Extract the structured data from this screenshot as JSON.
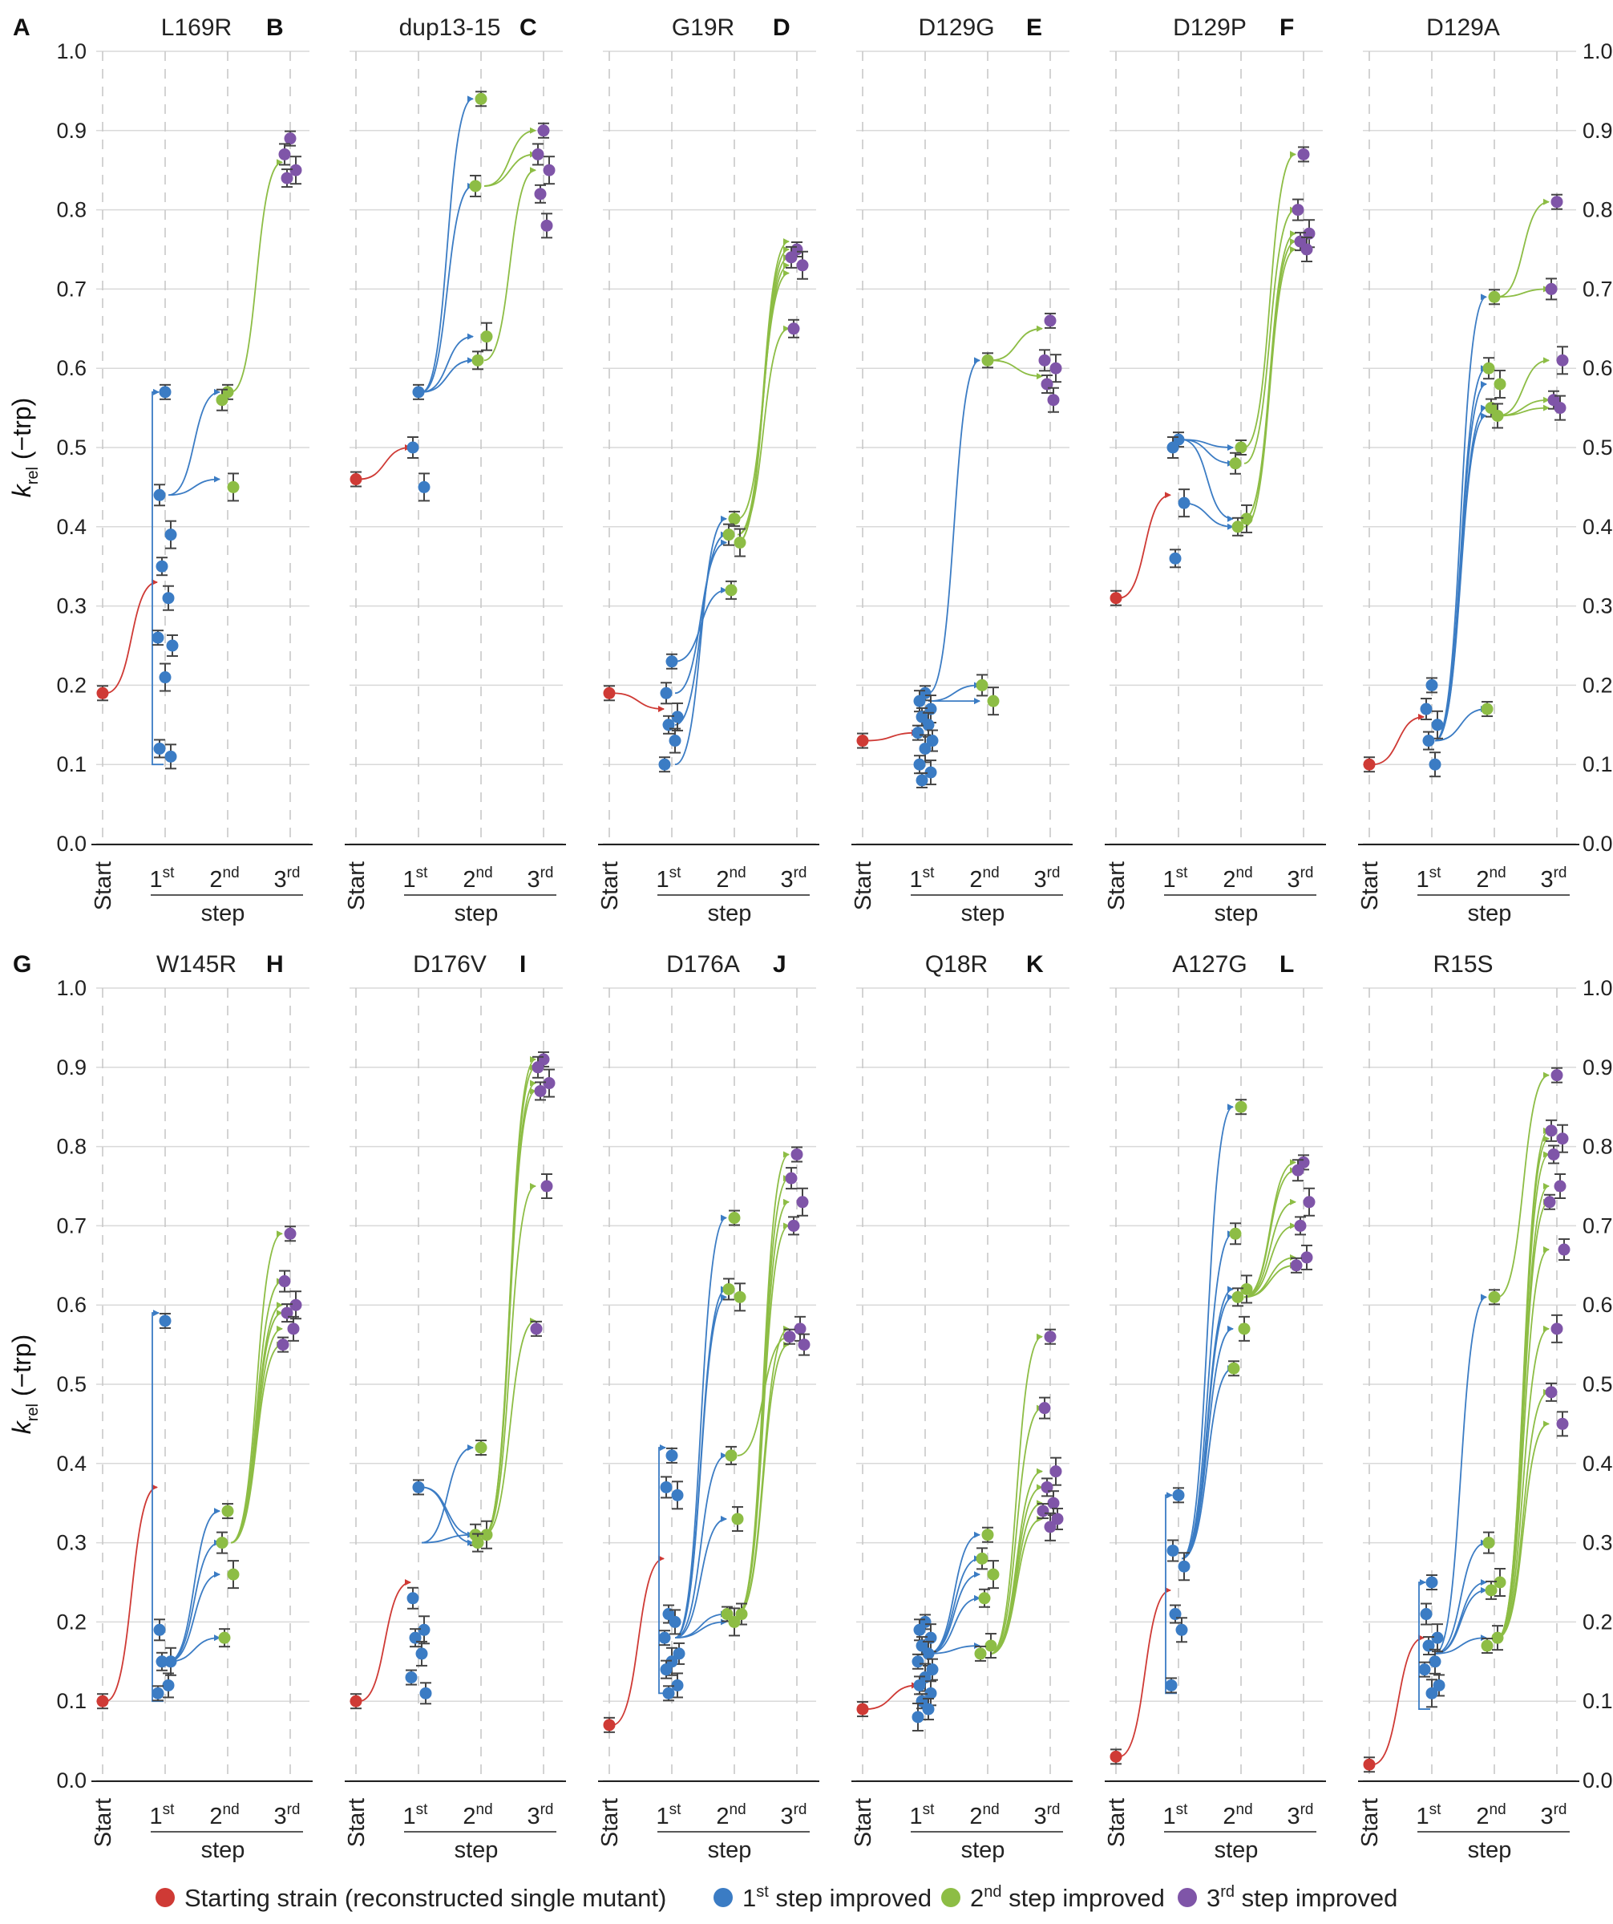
{
  "ylabel": "k",
  "ylabel_sub": "rel",
  "ylabel_suffix": " (−trp)",
  "x_categories": [
    "Start",
    "1st",
    "2nd",
    "3rd"
  ],
  "x_group_label": "step",
  "colors": {
    "start": "#cf3a35",
    "step1": "#3b7cc4",
    "step2": "#8dbd45",
    "step3": "#7f55a8",
    "grid": "#d9d9d9",
    "axis": "#222222"
  },
  "legend": [
    {
      "key": "start",
      "text": "Starting strain (reconstructed single mutant)",
      "parts": [
        [
          "Starting strain (reconstructed single mutant)",
          ""
        ]
      ]
    },
    {
      "key": "step1",
      "text": "1st step improved",
      "parts": [
        [
          "1",
          ""
        ],
        [
          "st",
          "sup"
        ],
        [
          " step improved",
          ""
        ]
      ]
    },
    {
      "key": "step2",
      "text": "2nd step improved",
      "parts": [
        [
          "2",
          ""
        ],
        [
          "nd",
          "sup"
        ],
        [
          " step improved",
          ""
        ]
      ]
    },
    {
      "key": "step3",
      "text": "3rd step improved",
      "parts": [
        [
          "3",
          ""
        ],
        [
          "rd",
          "sup"
        ],
        [
          " step improved",
          ""
        ]
      ]
    }
  ],
  "chart_data": [
    {
      "type": "scatter",
      "letter": "A",
      "title": "L169R",
      "ylim": [
        0,
        1
      ],
      "start": 0.19,
      "step1": [
        0.57,
        0.44,
        0.39,
        0.35,
        0.31,
        0.26,
        0.25,
        0.21,
        0.12,
        0.11
      ],
      "step2": [
        0.57,
        0.56,
        0.45
      ],
      "step3": [
        0.89,
        0.87,
        0.85,
        0.84
      ],
      "arrows": [
        [
          "start",
          0.19,
          1,
          0.33
        ],
        [
          "step1",
          0.1,
          1,
          0.57
        ],
        [
          "step1",
          0.44,
          2,
          0.46
        ],
        [
          "step1",
          0.44,
          2,
          0.57
        ],
        [
          "step2",
          0.57,
          3,
          0.86
        ]
      ]
    },
    {
      "type": "scatter",
      "letter": "B",
      "title": "dup13-15",
      "ylim": [
        0,
        1
      ],
      "start": 0.46,
      "step1": [
        0.57,
        0.5,
        0.45
      ],
      "step2": [
        0.94,
        0.83,
        0.64,
        0.61
      ],
      "step3": [
        0.9,
        0.87,
        0.85,
        0.82,
        0.78
      ],
      "arrows": [
        [
          "start",
          0.46,
          1,
          0.5
        ],
        [
          "step1",
          0.57,
          2,
          0.94
        ],
        [
          "step1",
          0.57,
          2,
          0.83
        ],
        [
          "step1",
          0.57,
          2,
          0.64
        ],
        [
          "step1",
          0.57,
          2,
          0.61
        ],
        [
          "step2",
          0.83,
          3,
          0.9
        ],
        [
          "step2",
          0.83,
          3,
          0.87
        ],
        [
          "step2",
          0.61,
          3,
          0.85
        ]
      ]
    },
    {
      "type": "scatter",
      "letter": "C",
      "title": "G19R",
      "ylim": [
        0,
        1
      ],
      "start": 0.19,
      "step1": [
        0.23,
        0.19,
        0.16,
        0.15,
        0.13,
        0.1
      ],
      "step2": [
        0.41,
        0.39,
        0.38,
        0.32
      ],
      "step3": [
        0.75,
        0.74,
        0.73,
        0.65
      ],
      "arrows": [
        [
          "start",
          0.19,
          1,
          0.17
        ],
        [
          "step1",
          0.1,
          2,
          0.41
        ],
        [
          "step1",
          0.15,
          2,
          0.39
        ],
        [
          "step1",
          0.19,
          2,
          0.38
        ],
        [
          "step1",
          0.23,
          2,
          0.32
        ],
        [
          "step2",
          0.38,
          3,
          0.76
        ],
        [
          "step2",
          0.38,
          3,
          0.75
        ],
        [
          "step2",
          0.38,
          3,
          0.74
        ],
        [
          "step2",
          0.39,
          3,
          0.73
        ],
        [
          "step2",
          0.41,
          3,
          0.72
        ],
        [
          "step2",
          0.39,
          3,
          0.65
        ]
      ]
    },
    {
      "type": "scatter",
      "letter": "D",
      "title": "D129G",
      "ylim": [
        0,
        1
      ],
      "start": 0.13,
      "step1": [
        0.19,
        0.18,
        0.17,
        0.16,
        0.15,
        0.14,
        0.13,
        0.12,
        0.1,
        0.09,
        0.08
      ],
      "step2": [
        0.61,
        0.2,
        0.18
      ],
      "step3": [
        0.66,
        0.61,
        0.6,
        0.58,
        0.56
      ],
      "arrows": [
        [
          "start",
          0.13,
          1,
          0.14
        ],
        [
          "step1",
          0.19,
          2,
          0.61
        ],
        [
          "step1",
          0.18,
          2,
          0.2
        ],
        [
          "step1",
          0.18,
          2,
          0.18
        ],
        [
          "step2",
          0.61,
          3,
          0.65
        ],
        [
          "step2",
          0.61,
          3,
          0.59
        ]
      ]
    },
    {
      "type": "scatter",
      "letter": "E",
      "title": "D129P",
      "ylim": [
        0,
        1
      ],
      "start": 0.31,
      "step1": [
        0.51,
        0.5,
        0.43,
        0.36
      ],
      "step2": [
        0.5,
        0.48,
        0.41,
        0.4
      ],
      "step3": [
        0.87,
        0.8,
        0.77,
        0.76,
        0.75
      ],
      "arrows": [
        [
          "start",
          0.31,
          1,
          0.44
        ],
        [
          "step1",
          0.51,
          2,
          0.5
        ],
        [
          "step1",
          0.51,
          2,
          0.48
        ],
        [
          "step1",
          0.51,
          2,
          0.41
        ],
        [
          "step1",
          0.43,
          2,
          0.4
        ],
        [
          "step2",
          0.5,
          3,
          0.87
        ],
        [
          "step2",
          0.48,
          3,
          0.8
        ],
        [
          "step2",
          0.41,
          3,
          0.77
        ],
        [
          "step2",
          0.41,
          3,
          0.76
        ],
        [
          "step2",
          0.4,
          3,
          0.75
        ]
      ]
    },
    {
      "type": "scatter",
      "letter": "F",
      "title": "D129A",
      "ylim": [
        0,
        1
      ],
      "start": 0.1,
      "step1": [
        0.2,
        0.17,
        0.15,
        0.13,
        0.1
      ],
      "step2": [
        0.69,
        0.6,
        0.58,
        0.55,
        0.54,
        0.17
      ],
      "step3": [
        0.81,
        0.7,
        0.61,
        0.56,
        0.55
      ],
      "arrows": [
        [
          "start",
          0.1,
          1,
          0.16
        ],
        [
          "step1",
          0.13,
          2,
          0.69
        ],
        [
          "step1",
          0.13,
          2,
          0.6
        ],
        [
          "step1",
          0.13,
          2,
          0.58
        ],
        [
          "step1",
          0.13,
          2,
          0.55
        ],
        [
          "step1",
          0.13,
          2,
          0.54
        ],
        [
          "step1",
          0.13,
          2,
          0.17
        ],
        [
          "step2",
          0.69,
          3,
          0.81
        ],
        [
          "step2",
          0.69,
          3,
          0.7
        ],
        [
          "step2",
          0.54,
          3,
          0.61
        ],
        [
          "step2",
          0.54,
          3,
          0.56
        ],
        [
          "step2",
          0.54,
          3,
          0.55
        ]
      ]
    },
    {
      "type": "scatter",
      "letter": "G",
      "title": "W145R",
      "ylim": [
        0,
        1
      ],
      "start": 0.1,
      "step1": [
        0.58,
        0.19,
        0.15,
        0.15,
        0.12,
        0.11
      ],
      "step2": [
        0.34,
        0.3,
        0.26,
        0.18
      ],
      "step3": [
        0.69,
        0.63,
        0.6,
        0.59,
        0.57,
        0.55
      ],
      "arrows": [
        [
          "start",
          0.1,
          1,
          0.37
        ],
        [
          "step1",
          0.1,
          1,
          0.59
        ],
        [
          "step1",
          0.15,
          2,
          0.34
        ],
        [
          "step1",
          0.15,
          2,
          0.3
        ],
        [
          "step1",
          0.15,
          2,
          0.26
        ],
        [
          "step1",
          0.15,
          2,
          0.18
        ],
        [
          "step2",
          0.3,
          3,
          0.69
        ],
        [
          "step2",
          0.3,
          3,
          0.63
        ],
        [
          "step2",
          0.3,
          3,
          0.6
        ],
        [
          "step2",
          0.3,
          3,
          0.59
        ],
        [
          "step2",
          0.3,
          3,
          0.57
        ],
        [
          "step2",
          0.3,
          3,
          0.55
        ]
      ]
    },
    {
      "type": "scatter",
      "letter": "H",
      "title": "D176V",
      "ylim": [
        0,
        1
      ],
      "start": 0.1,
      "step1": [
        0.37,
        0.23,
        0.19,
        0.18,
        0.16,
        0.13,
        0.11
      ],
      "step2": [
        0.42,
        0.31,
        0.31,
        0.3
      ],
      "step3": [
        0.91,
        0.9,
        0.88,
        0.87,
        0.75,
        0.57
      ],
      "arrows": [
        [
          "start",
          0.1,
          1,
          0.25
        ],
        [
          "step1",
          0.37,
          2,
          0.31
        ],
        [
          "step1",
          0.37,
          2,
          0.3
        ],
        [
          "step1",
          0.3,
          2,
          0.42
        ],
        [
          "step1",
          0.3,
          2,
          0.31
        ],
        [
          "step2",
          0.31,
          3,
          0.91
        ],
        [
          "step2",
          0.31,
          3,
          0.9
        ],
        [
          "step2",
          0.31,
          3,
          0.88
        ],
        [
          "step2",
          0.31,
          3,
          0.87
        ],
        [
          "step2",
          0.31,
          3,
          0.75
        ],
        [
          "step2",
          0.31,
          3,
          0.58
        ]
      ]
    },
    {
      "type": "scatter",
      "letter": "I",
      "title": "D176A",
      "ylim": [
        0,
        1
      ],
      "start": 0.07,
      "step1": [
        0.41,
        0.37,
        0.36,
        0.21,
        0.2,
        0.18,
        0.16,
        0.15,
        0.14,
        0.12,
        0.11
      ],
      "step2": [
        0.71,
        0.62,
        0.61,
        0.41,
        0.33,
        0.21,
        0.21,
        0.2
      ],
      "step3": [
        0.79,
        0.76,
        0.73,
        0.7,
        0.57,
        0.56,
        0.55
      ],
      "arrows": [
        [
          "start",
          0.07,
          1,
          0.28
        ],
        [
          "step1",
          0.11,
          1,
          0.42
        ],
        [
          "step1",
          0.18,
          2,
          0.71
        ],
        [
          "step1",
          0.18,
          2,
          0.62
        ],
        [
          "step1",
          0.18,
          2,
          0.61
        ],
        [
          "step1",
          0.18,
          2,
          0.41
        ],
        [
          "step1",
          0.18,
          2,
          0.33
        ],
        [
          "step1",
          0.18,
          2,
          0.21
        ],
        [
          "step1",
          0.18,
          2,
          0.2
        ],
        [
          "step2",
          0.21,
          3,
          0.79
        ],
        [
          "step2",
          0.21,
          3,
          0.76
        ],
        [
          "step2",
          0.21,
          3,
          0.73
        ],
        [
          "step2",
          0.21,
          3,
          0.7
        ],
        [
          "step2",
          0.21,
          3,
          0.57
        ],
        [
          "step2",
          0.21,
          3,
          0.55
        ],
        [
          "step2",
          0.41,
          3,
          0.56
        ]
      ]
    },
    {
      "type": "scatter",
      "letter": "J",
      "title": "Q18R",
      "ylim": [
        0,
        1
      ],
      "start": 0.09,
      "step1": [
        0.2,
        0.19,
        0.18,
        0.17,
        0.16,
        0.15,
        0.14,
        0.13,
        0.12,
        0.11,
        0.1,
        0.09,
        0.08
      ],
      "step2": [
        0.31,
        0.28,
        0.26,
        0.23,
        0.17,
        0.16
      ],
      "step3": [
        0.56,
        0.47,
        0.39,
        0.37,
        0.35,
        0.34,
        0.33,
        0.32
      ],
      "arrows": [
        [
          "start",
          0.09,
          1,
          0.12
        ],
        [
          "step1",
          0.16,
          2,
          0.31
        ],
        [
          "step1",
          0.16,
          2,
          0.28
        ],
        [
          "step1",
          0.16,
          2,
          0.26
        ],
        [
          "step1",
          0.16,
          2,
          0.23
        ],
        [
          "step1",
          0.16,
          2,
          0.17
        ],
        [
          "step2",
          0.16,
          3,
          0.56
        ],
        [
          "step2",
          0.16,
          3,
          0.47
        ],
        [
          "step2",
          0.16,
          3,
          0.39
        ],
        [
          "step2",
          0.16,
          3,
          0.37
        ],
        [
          "step2",
          0.16,
          3,
          0.35
        ],
        [
          "step2",
          0.16,
          3,
          0.33
        ]
      ]
    },
    {
      "type": "scatter",
      "letter": "K",
      "title": "A127G",
      "ylim": [
        0,
        1
      ],
      "start": 0.03,
      "step1": [
        0.36,
        0.29,
        0.27,
        0.21,
        0.19,
        0.12
      ],
      "step2": [
        0.85,
        0.69,
        0.62,
        0.61,
        0.57,
        0.52
      ],
      "step3": [
        0.78,
        0.77,
        0.73,
        0.7,
        0.66,
        0.65
      ],
      "arrows": [
        [
          "start",
          0.03,
          1,
          0.24
        ],
        [
          "step1",
          0.11,
          1,
          0.36
        ],
        [
          "step1",
          0.28,
          2,
          0.85
        ],
        [
          "step1",
          0.28,
          2,
          0.69
        ],
        [
          "step1",
          0.28,
          2,
          0.62
        ],
        [
          "step1",
          0.28,
          2,
          0.61
        ],
        [
          "step1",
          0.28,
          2,
          0.57
        ],
        [
          "step1",
          0.28,
          2,
          0.52
        ],
        [
          "step2",
          0.61,
          3,
          0.78
        ],
        [
          "step2",
          0.61,
          3,
          0.77
        ],
        [
          "step2",
          0.61,
          3,
          0.73
        ],
        [
          "step2",
          0.61,
          3,
          0.7
        ],
        [
          "step2",
          0.61,
          3,
          0.66
        ],
        [
          "step2",
          0.61,
          3,
          0.65
        ]
      ]
    },
    {
      "type": "scatter",
      "letter": "L",
      "title": "R15S",
      "ylim": [
        0,
        1
      ],
      "start": 0.02,
      "step1": [
        0.25,
        0.21,
        0.18,
        0.17,
        0.15,
        0.14,
        0.12,
        0.11
      ],
      "step2": [
        0.61,
        0.3,
        0.25,
        0.24,
        0.18,
        0.17
      ],
      "step3": [
        0.89,
        0.82,
        0.81,
        0.79,
        0.75,
        0.73,
        0.67,
        0.57,
        0.49,
        0.45
      ],
      "arrows": [
        [
          "start",
          0.02,
          1,
          0.18
        ],
        [
          "step1",
          0.09,
          1,
          0.25
        ],
        [
          "step1",
          0.16,
          2,
          0.61
        ],
        [
          "step1",
          0.16,
          2,
          0.3
        ],
        [
          "step1",
          0.16,
          2,
          0.25
        ],
        [
          "step1",
          0.16,
          2,
          0.24
        ],
        [
          "step1",
          0.16,
          2,
          0.18
        ],
        [
          "step2",
          0.61,
          3,
          0.89
        ],
        [
          "step2",
          0.18,
          3,
          0.82
        ],
        [
          "step2",
          0.18,
          3,
          0.81
        ],
        [
          "step2",
          0.18,
          3,
          0.79
        ],
        [
          "step2",
          0.18,
          3,
          0.75
        ],
        [
          "step2",
          0.18,
          3,
          0.73
        ],
        [
          "step2",
          0.18,
          3,
          0.67
        ],
        [
          "step2",
          0.18,
          3,
          0.57
        ],
        [
          "step2",
          0.18,
          3,
          0.49
        ],
        [
          "step2",
          0.18,
          3,
          0.45
        ]
      ]
    }
  ]
}
